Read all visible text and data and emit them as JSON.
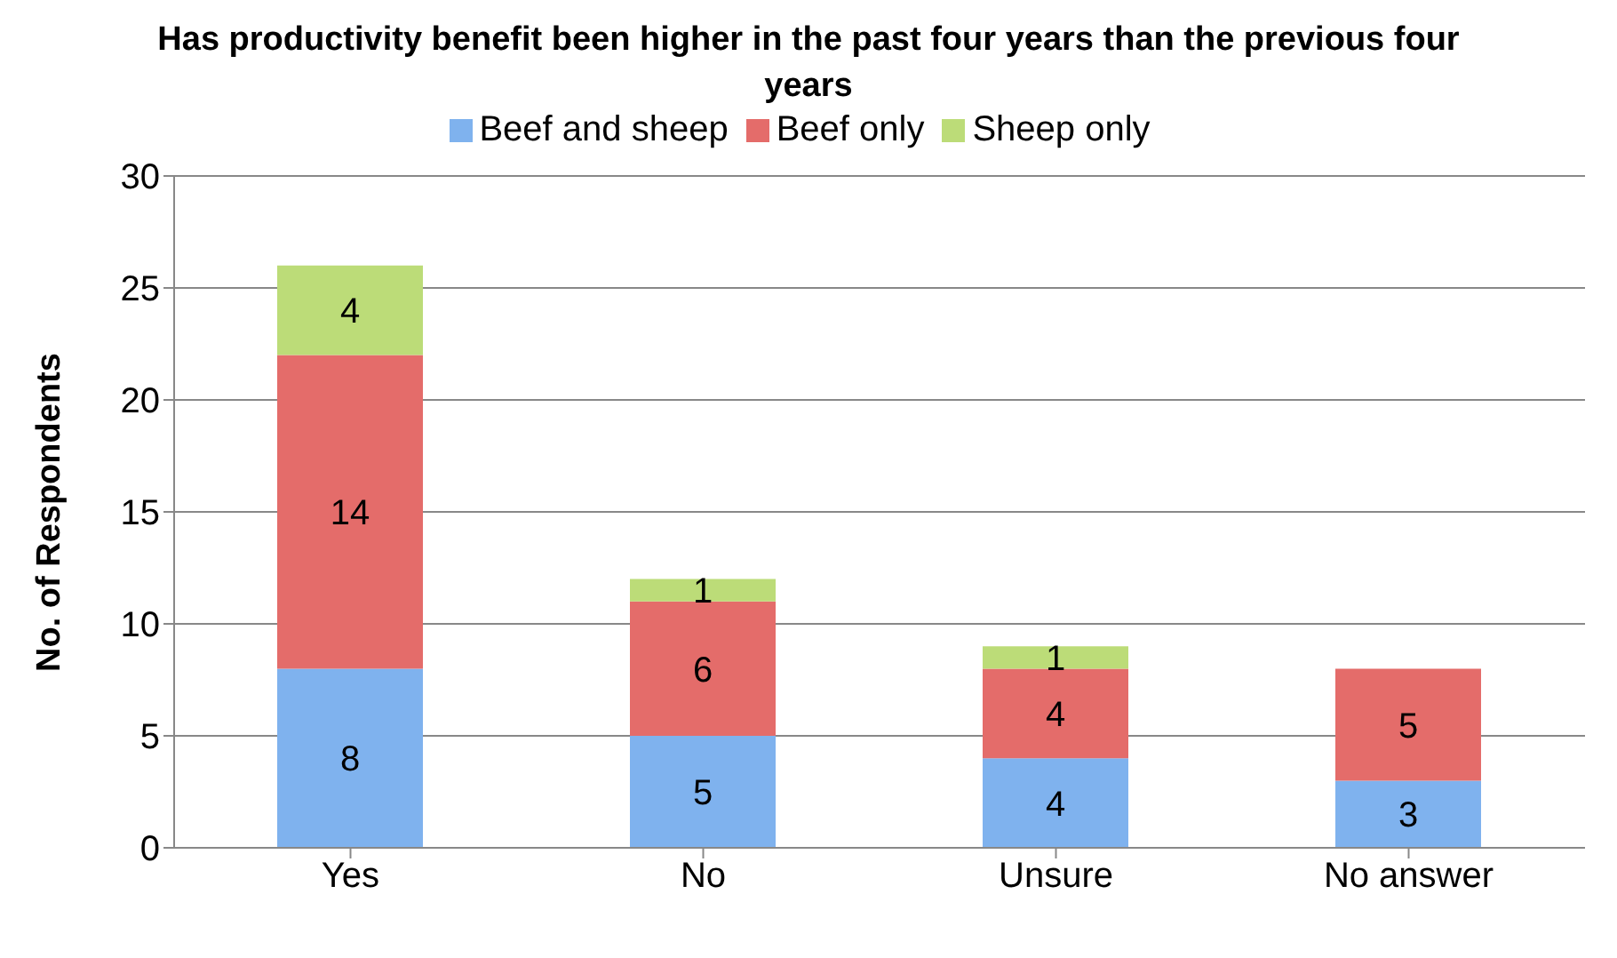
{
  "chart_data": {
    "type": "bar",
    "title": "Has productivity benefit been higher in the past four years than the previous four years",
    "ylabel": "No. of Respondents",
    "categories": [
      "Yes",
      "No",
      "Unsure",
      "No answer"
    ],
    "stacked": true,
    "series": [
      {
        "name": "Beef and sheep",
        "color": "#7fb2ee",
        "values": [
          8,
          5,
          4,
          3
        ]
      },
      {
        "name": "Beef only",
        "color": "#e46c6a",
        "values": [
          14,
          6,
          4,
          5
        ]
      },
      {
        "name": "Sheep only",
        "color": "#bcdc78",
        "values": [
          4,
          1,
          1,
          null
        ]
      }
    ],
    "ylim": [
      0,
      30
    ],
    "yticks": [
      0,
      5,
      10,
      15,
      20,
      25,
      30
    ],
    "grid": "y",
    "legend": "top",
    "data_labels": true
  }
}
